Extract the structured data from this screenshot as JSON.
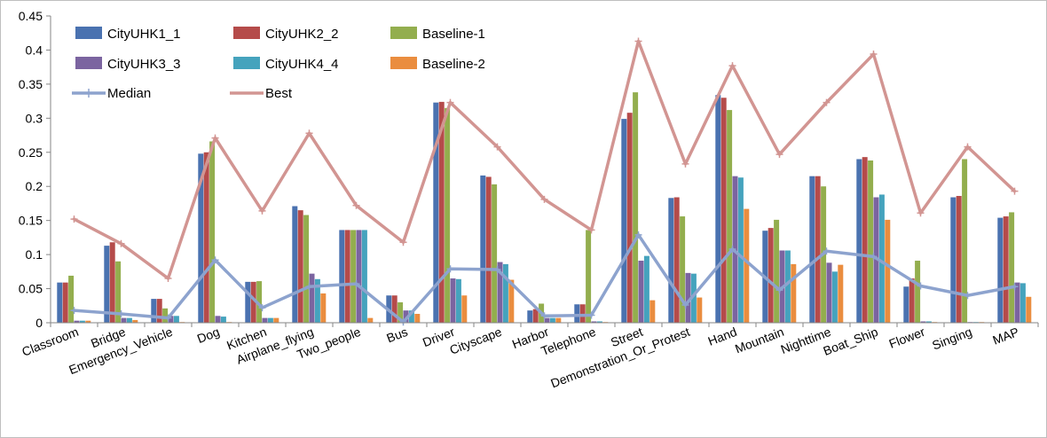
{
  "chart_data": {
    "type": "bar",
    "categories": [
      "Classroom",
      "Bridge",
      "Emergency_Vehicle",
      "Dog",
      "Kitchen",
      "Airplane_flying",
      "Two_people",
      "Bus",
      "Driver",
      "Cityscape",
      "Harbor",
      "Telephone",
      "Street",
      "Demonstration_Or_Protest",
      "Hand",
      "Mountain",
      "Nighttime",
      "Boat_Ship",
      "Flower",
      "Singing",
      "MAP"
    ],
    "ylim": [
      0,
      0.45
    ],
    "yticks": [
      "0",
      "0.05",
      "0.1",
      "0.15",
      "0.2",
      "0.25",
      "0.3",
      "0.35",
      "0.4",
      "0.45"
    ],
    "ytick_values": [
      0,
      0.05,
      0.1,
      0.15,
      0.2,
      0.25,
      0.3,
      0.35,
      0.4,
      0.45
    ],
    "grid": false,
    "legend_position": "top-left",
    "series": [
      {
        "name": "CityUHK1_1",
        "color": "#4A72B0",
        "values": [
          0.059,
          0.113,
          0.035,
          0.248,
          0.06,
          0.171,
          0.136,
          0.04,
          0.323,
          0.216,
          0.018,
          0.027,
          0.299,
          0.183,
          0.334,
          0.135,
          0.215,
          0.24,
          0.053,
          0.184,
          0.154
        ]
      },
      {
        "name": "CityUHK2_2",
        "color": "#B54B4A",
        "values": [
          0.059,
          0.118,
          0.035,
          0.25,
          0.06,
          0.165,
          0.136,
          0.04,
          0.324,
          0.214,
          0.02,
          0.027,
          0.308,
          0.184,
          0.33,
          0.139,
          0.215,
          0.243,
          0.065,
          0.186,
          0.156
        ]
      },
      {
        "name": "Baseline-1",
        "color": "#93AE4E",
        "values": [
          0.069,
          0.09,
          0.021,
          0.266,
          0.061,
          0.158,
          0.136,
          0.03,
          0.315,
          0.203,
          0.028,
          0.136,
          0.338,
          0.156,
          0.312,
          0.151,
          0.2,
          0.238,
          0.091,
          0.24,
          0.162
        ]
      },
      {
        "name": "CityUHK3_3",
        "color": "#7B64A0",
        "values": [
          0.003,
          0.007,
          0.01,
          0.01,
          0.007,
          0.072,
          0.136,
          0.018,
          0.065,
          0.089,
          0.007,
          0.002,
          0.091,
          0.073,
          0.215,
          0.106,
          0.088,
          0.184,
          0.002,
          0.001,
          0.059
        ]
      },
      {
        "name": "CityUHK4_4",
        "color": "#45A3BD",
        "values": [
          0.003,
          0.007,
          0.01,
          0.009,
          0.007,
          0.064,
          0.136,
          0.018,
          0.064,
          0.086,
          0.007,
          0.002,
          0.098,
          0.072,
          0.213,
          0.106,
          0.075,
          0.188,
          0.002,
          0.001,
          0.058
        ]
      },
      {
        "name": "Baseline-2",
        "color": "#EA8D3F",
        "values": [
          0.003,
          0.004,
          0.001,
          0.001,
          0.007,
          0.043,
          0.007,
          0.013,
          0.04,
          0.063,
          0.007,
          0.001,
          0.033,
          0.037,
          0.167,
          0.086,
          0.085,
          0.151,
          0.001,
          0.001,
          0.038
        ]
      }
    ],
    "lines": [
      {
        "name": "Median",
        "color": "#8DA3CE",
        "values": [
          0.018,
          0.013,
          0.007,
          0.092,
          0.022,
          0.053,
          0.057,
          0.001,
          0.079,
          0.078,
          0.01,
          0.011,
          0.129,
          0.026,
          0.108,
          0.048,
          0.105,
          0.097,
          0.054,
          0.04,
          0.053
        ]
      },
      {
        "name": "Best",
        "color": "#D29592",
        "values": [
          0.152,
          0.116,
          0.065,
          0.271,
          0.164,
          0.278,
          0.172,
          0.118,
          0.323,
          0.258,
          0.181,
          0.136,
          0.413,
          0.233,
          0.377,
          0.247,
          0.323,
          0.394,
          0.161,
          0.258,
          0.193
        ]
      }
    ]
  }
}
